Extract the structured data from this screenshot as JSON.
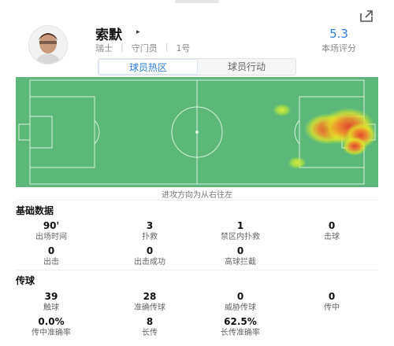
{
  "player": {
    "name": "索默",
    "country": "瑞士",
    "position": "守门员",
    "number": "1号",
    "rating": "5.3",
    "rating_label": "本场评分"
  },
  "tabs": [
    "球员热区",
    "球员行动"
  ],
  "active_tab": 0,
  "heatmap": {
    "direction_text": "进攻方向为从右往左",
    "pitch_color": "#5cb878",
    "line_color": "#d8f0df"
  },
  "basic_stats": {
    "title": "基础数据",
    "items": [
      {
        "value": "90'",
        "label": "出场时间"
      },
      {
        "value": "3",
        "label": "扑救"
      },
      {
        "value": "1",
        "label": "禁区内扑救"
      },
      {
        "value": "0",
        "label": "击球"
      },
      {
        "value": "0",
        "label": "出击"
      },
      {
        "value": "0",
        "label": "出击成功"
      },
      {
        "value": "0",
        "label": "高球拦截"
      }
    ]
  },
  "passing_stats": {
    "title": "传球",
    "items": [
      {
        "value": "39",
        "label": "触球"
      },
      {
        "value": "28",
        "label": "准确传球"
      },
      {
        "value": "0",
        "label": "威胁传球"
      },
      {
        "value": "0",
        "label": "传中"
      },
      {
        "value": "0.0%",
        "label": "传中准确率"
      },
      {
        "value": "8",
        "label": "长传"
      },
      {
        "value": "62.5%",
        "label": "长传准确率"
      }
    ]
  },
  "icons": [
    "share-icon",
    "triangle-right-icon"
  ]
}
